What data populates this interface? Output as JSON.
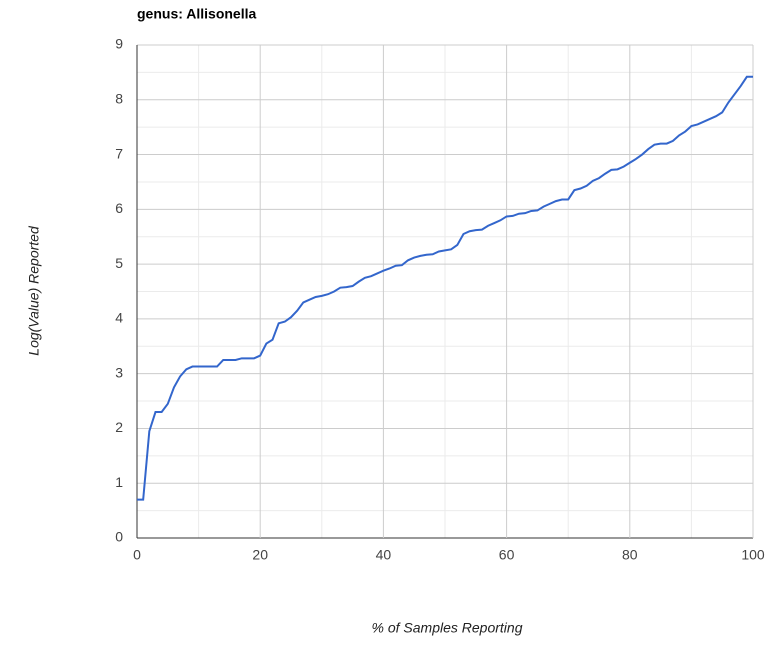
{
  "chart_data": {
    "type": "line",
    "title": "genus: Allisonella",
    "x_label": "% of Samples Reporting",
    "y_label": "Log(Value) Reported",
    "x": [
      0,
      1,
      2,
      3,
      4,
      5,
      6,
      7,
      8,
      9,
      10,
      11,
      12,
      13,
      14,
      15,
      16,
      17,
      18,
      19,
      20,
      21,
      22,
      23,
      24,
      25,
      26,
      27,
      28,
      29,
      30,
      31,
      32,
      33,
      34,
      35,
      36,
      37,
      38,
      39,
      40,
      41,
      42,
      43,
      44,
      45,
      46,
      47,
      48,
      49,
      50,
      51,
      52,
      53,
      54,
      55,
      56,
      57,
      58,
      59,
      60,
      61,
      62,
      63,
      64,
      65,
      66,
      67,
      68,
      69,
      70,
      71,
      72,
      73,
      74,
      75,
      76,
      77,
      78,
      79,
      80,
      81,
      82,
      83,
      84,
      85,
      86,
      87,
      88,
      89,
      90,
      91,
      92,
      93,
      94,
      95,
      96,
      97,
      98,
      99,
      100
    ],
    "series": [
      {
        "name": "Log(Value) Reported",
        "color": "#3366cc",
        "values": [
          0.7,
          0.7,
          1.95,
          2.3,
          2.3,
          2.45,
          2.75,
          2.95,
          3.08,
          3.13,
          3.13,
          3.13,
          3.13,
          3.13,
          3.25,
          3.25,
          3.25,
          3.28,
          3.28,
          3.28,
          3.33,
          3.55,
          3.62,
          3.92,
          3.95,
          4.03,
          4.15,
          4.3,
          4.35,
          4.4,
          4.42,
          4.45,
          4.5,
          4.57,
          4.58,
          4.6,
          4.68,
          4.75,
          4.78,
          4.83,
          4.88,
          4.92,
          4.97,
          4.98,
          5.07,
          5.12,
          5.15,
          5.17,
          5.18,
          5.23,
          5.25,
          5.27,
          5.35,
          5.55,
          5.6,
          5.62,
          5.63,
          5.7,
          5.75,
          5.8,
          5.87,
          5.88,
          5.92,
          5.93,
          5.97,
          5.98,
          6.05,
          6.1,
          6.15,
          6.18,
          6.18,
          6.35,
          6.38,
          6.43,
          6.52,
          6.57,
          6.65,
          6.72,
          6.73,
          6.78,
          6.85,
          6.92,
          7.0,
          7.1,
          7.18,
          7.2,
          7.2,
          7.25,
          7.35,
          7.42,
          7.52,
          7.55,
          7.6,
          7.65,
          7.7,
          7.77,
          7.95,
          8.1,
          8.25,
          8.42,
          8.42
        ]
      }
    ],
    "xlim": [
      0,
      100
    ],
    "xticks": [
      0,
      20,
      40,
      60,
      80,
      100
    ],
    "xminor": [
      10,
      30,
      50,
      70,
      90
    ],
    "ylim": [
      0,
      9
    ],
    "yticks": [
      0,
      1,
      2,
      3,
      4,
      5,
      6,
      7,
      8,
      9
    ],
    "yminor": [
      0.5,
      1.5,
      2.5,
      3.5,
      4.5,
      5.5,
      6.5,
      7.5,
      8.5
    ],
    "grid": true
  }
}
